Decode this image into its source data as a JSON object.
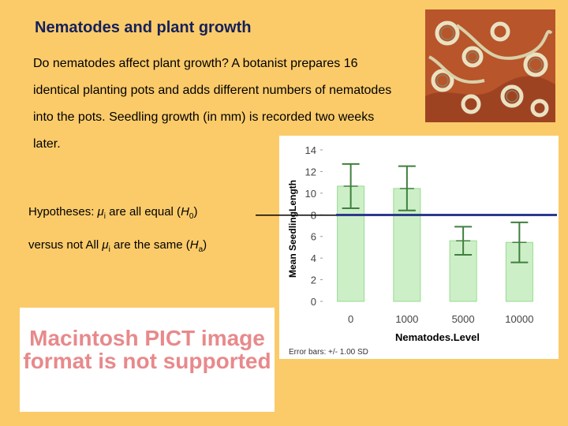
{
  "slide": {
    "title": "Nematodes and plant growth",
    "intro": "Do nematodes affect plant growth? A botanist prepares 16 identical planting pots and adds different numbers of nematodes into the pots. Seedling growth (in mm) is recorded two weeks later.",
    "hypothesis_label": "Hypotheses: ",
    "mu_symbol": "μ",
    "mu_sub": "i",
    "null_text": " are all equal (",
    "null_H": "H",
    "null_sub": "0",
    "close_paren": ")",
    "alt_prefix": "versus not All ",
    "alt_text": " are the same (",
    "alt_H": "H",
    "alt_sub": "a",
    "pict_notice": "Macintosh PICT image format is not supported",
    "photo_icon": "nematode-photo"
  },
  "chart_data": {
    "type": "bar",
    "categories": [
      "0",
      "1000",
      "5000",
      "10000"
    ],
    "values": [
      10.65,
      10.43,
      5.6,
      5.45
    ],
    "error_upper": [
      12.7,
      12.5,
      6.9,
      7.3
    ],
    "error_lower": [
      8.6,
      8.4,
      4.3,
      3.6
    ],
    "xlabel": "Nematodes.Level",
    "ylabel": "Mean SeedlingLength",
    "ylim": [
      0,
      14
    ],
    "yticks": [
      0,
      2,
      4,
      6,
      8,
      10,
      12,
      14
    ],
    "ytick_labels": [
      "0",
      "2",
      "4",
      "6",
      "8",
      "10",
      "12",
      "14"
    ],
    "grand_mean": 8.0,
    "footnote": "Error bars: +/- 1.00 SD",
    "colors": {
      "bar_fill": "#CDEFC7",
      "bar_stroke": "#97DB8E",
      "error_bar": "#3F7F3F",
      "mean_line": "#2B3A8C"
    }
  }
}
